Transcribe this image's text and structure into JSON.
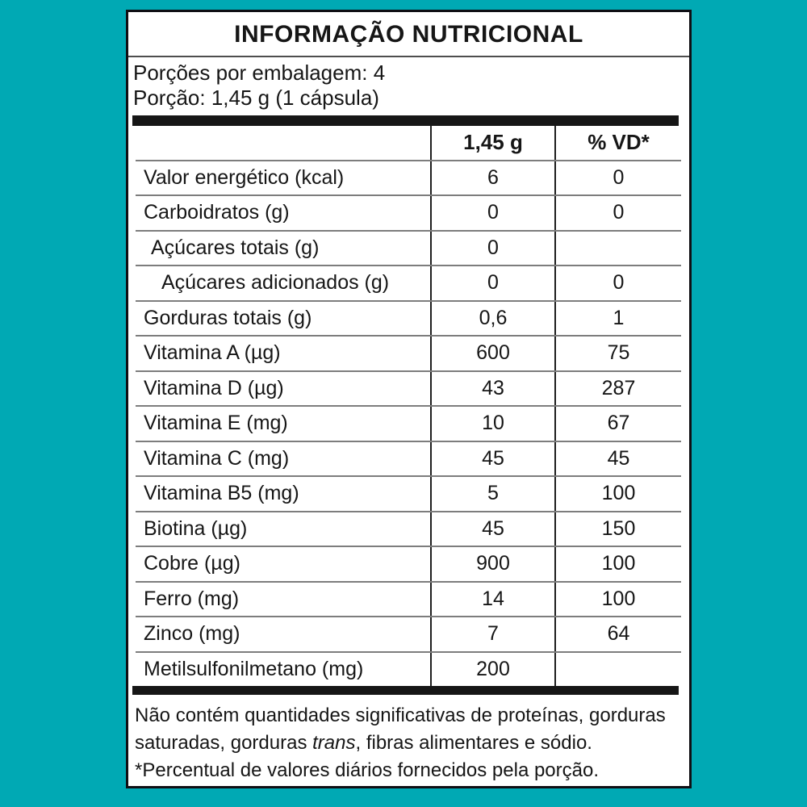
{
  "background_color": "#00a9b4",
  "panel": {
    "title": "INFORMAÇÃO NUTRICIONAL",
    "servings_line": "Porções por embalagem: 4",
    "serving_size_line": "Porção: 1,45 g (1 cápsula)"
  },
  "table": {
    "columns": [
      "",
      "1,45 g",
      "% VD*"
    ],
    "rows": [
      {
        "label": "Valor energético (kcal)",
        "amount": "6",
        "vd": "0",
        "indent": 0
      },
      {
        "label": "Carboidratos (g)",
        "amount": "0",
        "vd": "0",
        "indent": 0
      },
      {
        "label": "Açúcares totais (g)",
        "amount": "0",
        "vd": "",
        "indent": 1
      },
      {
        "label": "Açúcares adicionados (g)",
        "amount": "0",
        "vd": "0",
        "indent": 2
      },
      {
        "label": "Gorduras totais (g)",
        "amount": "0,6",
        "vd": "1",
        "indent": 0
      },
      {
        "label": "Vitamina A (µg)",
        "amount": "600",
        "vd": "75",
        "indent": 0
      },
      {
        "label": "Vitamina D (µg)",
        "amount": "43",
        "vd": "287",
        "indent": 0
      },
      {
        "label": "Vitamina E (mg)",
        "amount": "10",
        "vd": "67",
        "indent": 0
      },
      {
        "label": "Vitamina C (mg)",
        "amount": "45",
        "vd": "45",
        "indent": 0
      },
      {
        "label": "Vitamina B5 (mg)",
        "amount": "5",
        "vd": "100",
        "indent": 0
      },
      {
        "label": "Biotina (µg)",
        "amount": "45",
        "vd": "150",
        "indent": 0
      },
      {
        "label": "Cobre (µg)",
        "amount": "900",
        "vd": "100",
        "indent": 0
      },
      {
        "label": "Ferro (mg)",
        "amount": "14",
        "vd": "100",
        "indent": 0
      },
      {
        "label": "Zinco (mg)",
        "amount": "7",
        "vd": "64",
        "indent": 0
      },
      {
        "label": "Metilsulfonilmetano (mg)",
        "amount": "200",
        "vd": "",
        "indent": 0
      }
    ]
  },
  "footer": {
    "no_significant_before": "Não contém quantidades significativas de proteínas, gorduras saturadas, gorduras ",
    "trans_word": "trans",
    "no_significant_after": ", fibras alimentares e sódio.",
    "percent_note": "*Percentual de valores diários fornecidos pela porção."
  }
}
